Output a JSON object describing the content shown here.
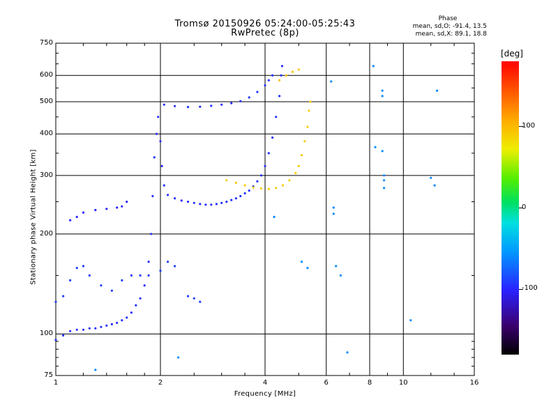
{
  "chart_data": {
    "type": "scatter",
    "title": "Tromsø 20150926 05:24:00-05:25:43",
    "subtitle": "RwPretec (8p)",
    "xlabel": "Frequency [MHz]",
    "ylabel": "Stationary phase Virtual Height [km]",
    "xscale": "log",
    "yscale": "log",
    "xlim": [
      1,
      16
    ],
    "ylim": [
      75,
      750
    ],
    "xticks": [
      1,
      2,
      4,
      6,
      8,
      10,
      16
    ],
    "xtick_labels": [
      "1",
      "2",
      "4",
      "6",
      "8",
      "10",
      "16"
    ],
    "yticks": [
      75,
      100,
      200,
      300,
      400,
      500,
      600,
      750
    ],
    "ytick_labels": [
      "75",
      "100",
      "200",
      "300",
      "400",
      "500",
      "600",
      "750"
    ],
    "grid": true,
    "phase_box": {
      "title": "Phase",
      "o_line": "mean, sd,O: -91.4, 13.5",
      "x_line": "mean, sd,X:  89.1, 18.8"
    },
    "colorbar": {
      "label": "[deg]",
      "range": [
        -180,
        180
      ],
      "ticks": [
        100,
        0,
        -100
      ],
      "tick_labels": [
        "100",
        "0",
        "-100"
      ],
      "colormap": "rainbow"
    },
    "series": [
      {
        "mode": "O",
        "phase": -95,
        "points": [
          [
            1.0,
            96
          ],
          [
            1.05,
            99
          ],
          [
            1.1,
            102
          ],
          [
            1.15,
            103
          ],
          [
            1.2,
            103
          ],
          [
            1.25,
            104
          ],
          [
            1.3,
            104
          ],
          [
            1.35,
            105
          ],
          [
            1.4,
            106
          ],
          [
            1.45,
            107
          ],
          [
            1.5,
            108
          ],
          [
            1.55,
            110
          ],
          [
            1.6,
            112
          ],
          [
            1.65,
            116
          ],
          [
            1.7,
            122
          ],
          [
            1.75,
            128
          ],
          [
            1.8,
            140
          ],
          [
            1.85,
            165
          ],
          [
            1.88,
            200
          ],
          [
            1.9,
            260
          ],
          [
            1.92,
            340
          ],
          [
            1.95,
            400
          ],
          [
            1.97,
            450
          ],
          [
            2.0,
            380
          ],
          [
            2.02,
            320
          ],
          [
            2.05,
            280
          ],
          [
            2.1,
            262
          ],
          [
            2.2,
            256
          ],
          [
            2.3,
            252
          ],
          [
            2.4,
            250
          ],
          [
            2.5,
            248
          ],
          [
            2.6,
            246
          ],
          [
            2.7,
            245
          ],
          [
            2.8,
            245
          ],
          [
            2.9,
            246
          ],
          [
            3.0,
            248
          ],
          [
            3.1,
            250
          ],
          [
            3.2,
            253
          ],
          [
            3.3,
            256
          ],
          [
            3.4,
            260
          ],
          [
            3.5,
            265
          ],
          [
            3.6,
            270
          ],
          [
            3.7,
            278
          ],
          [
            3.8,
            288
          ],
          [
            3.9,
            300
          ],
          [
            4.0,
            320
          ],
          [
            4.1,
            350
          ],
          [
            4.2,
            390
          ],
          [
            4.3,
            450
          ],
          [
            4.4,
            520
          ],
          [
            4.45,
            600
          ],
          [
            4.48,
            640
          ]
        ]
      },
      {
        "mode": "O-F2-upper",
        "phase": -95,
        "points": [
          [
            2.05,
            490
          ],
          [
            2.2,
            485
          ],
          [
            2.4,
            482
          ],
          [
            2.6,
            483
          ],
          [
            2.8,
            486
          ],
          [
            3.0,
            490
          ],
          [
            3.2,
            495
          ],
          [
            3.4,
            502
          ],
          [
            3.6,
            515
          ],
          [
            3.8,
            535
          ],
          [
            4.0,
            560
          ],
          [
            4.1,
            580
          ],
          [
            4.2,
            600
          ]
        ]
      },
      {
        "mode": "X",
        "phase": 90,
        "points": [
          [
            3.1,
            290
          ],
          [
            3.3,
            285
          ],
          [
            3.5,
            280
          ],
          [
            3.7,
            276
          ],
          [
            3.9,
            274
          ],
          [
            4.1,
            273
          ],
          [
            4.3,
            275
          ],
          [
            4.5,
            280
          ],
          [
            4.7,
            290
          ],
          [
            4.9,
            305
          ],
          [
            5.0,
            320
          ],
          [
            5.1,
            345
          ],
          [
            5.2,
            380
          ],
          [
            5.3,
            420
          ],
          [
            5.35,
            470
          ],
          [
            5.4,
            500
          ]
        ]
      },
      {
        "mode": "X-upper",
        "phase": 95,
        "points": [
          [
            4.4,
            580
          ],
          [
            4.6,
            600
          ],
          [
            4.8,
            615
          ],
          [
            5.0,
            625
          ]
        ]
      },
      {
        "mode": "E-trace",
        "phase": -100,
        "points": [
          [
            1.1,
            220
          ],
          [
            1.15,
            225
          ],
          [
            1.2,
            232
          ],
          [
            1.3,
            236
          ],
          [
            1.4,
            238
          ],
          [
            1.5,
            240
          ],
          [
            1.55,
            242
          ],
          [
            1.6,
            250
          ]
        ]
      },
      {
        "mode": "sporadic",
        "phase": -90,
        "points": [
          [
            1.0,
            125
          ],
          [
            1.05,
            130
          ],
          [
            1.1,
            145
          ],
          [
            1.15,
            158
          ],
          [
            1.2,
            160
          ],
          [
            1.25,
            150
          ],
          [
            1.35,
            140
          ],
          [
            1.45,
            135
          ],
          [
            1.55,
            145
          ],
          [
            1.65,
            150
          ],
          [
            1.75,
            150
          ],
          [
            1.85,
            150
          ],
          [
            2.0,
            155
          ],
          [
            2.1,
            165
          ],
          [
            2.2,
            160
          ],
          [
            2.4,
            130
          ],
          [
            2.5,
            128
          ],
          [
            2.6,
            125
          ]
        ]
      },
      {
        "mode": "noise",
        "phase": -60,
        "points": [
          [
            6.3,
            240
          ],
          [
            6.3,
            230
          ],
          [
            6.2,
            575
          ],
          [
            8.2,
            640
          ],
          [
            8.7,
            540
          ],
          [
            8.7,
            520
          ],
          [
            8.3,
            365
          ],
          [
            8.7,
            355
          ],
          [
            8.8,
            300
          ],
          [
            8.8,
            290
          ],
          [
            8.8,
            275
          ],
          [
            12.0,
            295
          ],
          [
            12.3,
            280
          ],
          [
            12.5,
            540
          ],
          [
            10.5,
            110
          ],
          [
            4.25,
            225
          ],
          [
            5.1,
            165
          ],
          [
            5.3,
            158
          ],
          [
            6.4,
            160
          ],
          [
            6.6,
            150
          ],
          [
            6.9,
            88
          ],
          [
            2.25,
            85
          ],
          [
            1.3,
            78
          ]
        ]
      }
    ]
  }
}
